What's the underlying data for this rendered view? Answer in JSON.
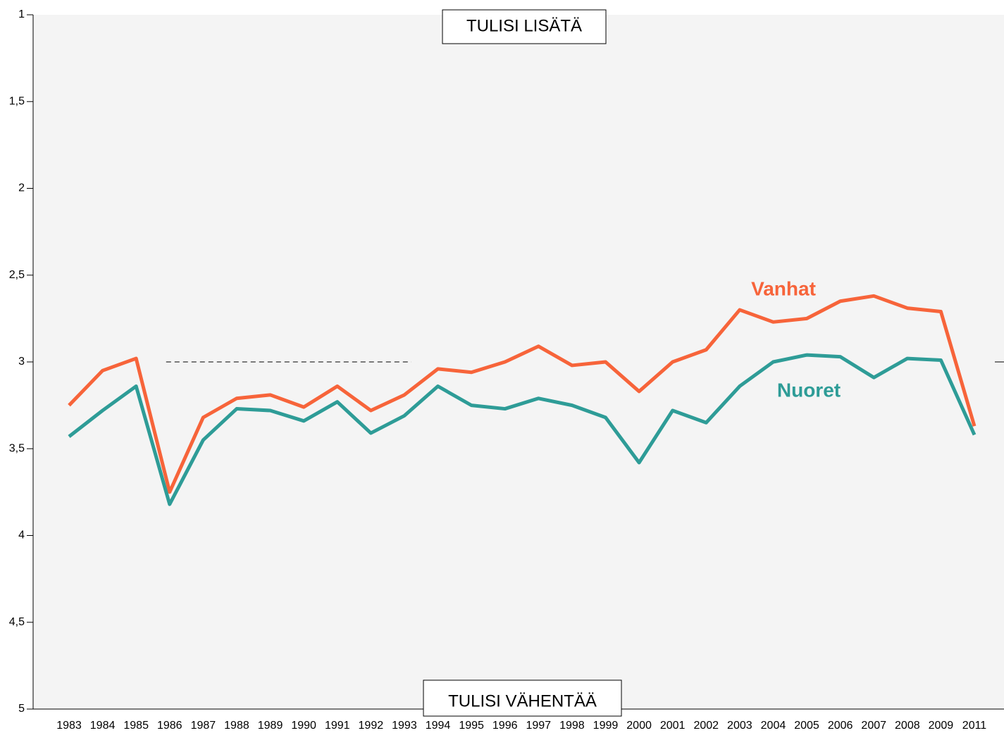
{
  "chart_data": {
    "type": "line",
    "annotations": [
      "TULISI LISÄTÄ",
      "TULISI VÄHENTÄÄ"
    ],
    "categories": [
      "1983",
      "1984",
      "1985",
      "1986",
      "1987",
      "1988",
      "1989",
      "1990",
      "1991",
      "1992",
      "1993",
      "1994",
      "1995",
      "1996",
      "1997",
      "1998",
      "1999",
      "2000",
      "2001",
      "2002",
      "2003",
      "2004",
      "2005",
      "2006",
      "2007",
      "2008",
      "2009",
      "2011"
    ],
    "series": [
      {
        "name": "Vanhat",
        "color": "#f7643a",
        "values": [
          3.25,
          3.05,
          2.98,
          3.75,
          3.32,
          3.21,
          3.19,
          3.26,
          3.14,
          3.28,
          3.19,
          3.04,
          3.06,
          3.0,
          2.91,
          3.02,
          3.0,
          3.17,
          3.0,
          2.93,
          2.7,
          2.77,
          2.75,
          2.65,
          2.62,
          2.69,
          2.71,
          3.37
        ]
      },
      {
        "name": "Nuoret",
        "color": "#2e9c97",
        "values": [
          3.43,
          3.28,
          3.14,
          3.82,
          3.45,
          3.27,
          3.28,
          3.34,
          3.23,
          3.41,
          3.31,
          3.14,
          3.25,
          3.27,
          3.21,
          3.25,
          3.32,
          3.58,
          3.28,
          3.35,
          3.14,
          3.0,
          2.96,
          2.97,
          3.09,
          2.98,
          2.99,
          3.42
        ]
      }
    ],
    "ylim": [
      5,
      1
    ],
    "yticks": [
      1,
      {
        "value": 1.5,
        "label": "1,5"
      },
      2,
      {
        "value": 2.5,
        "label": "2,5"
      },
      3,
      {
        "value": 3.5,
        "label": "3,5"
      },
      4,
      {
        "value": 4.5,
        "label": "4,5"
      },
      5
    ],
    "reference_line": 3
  }
}
